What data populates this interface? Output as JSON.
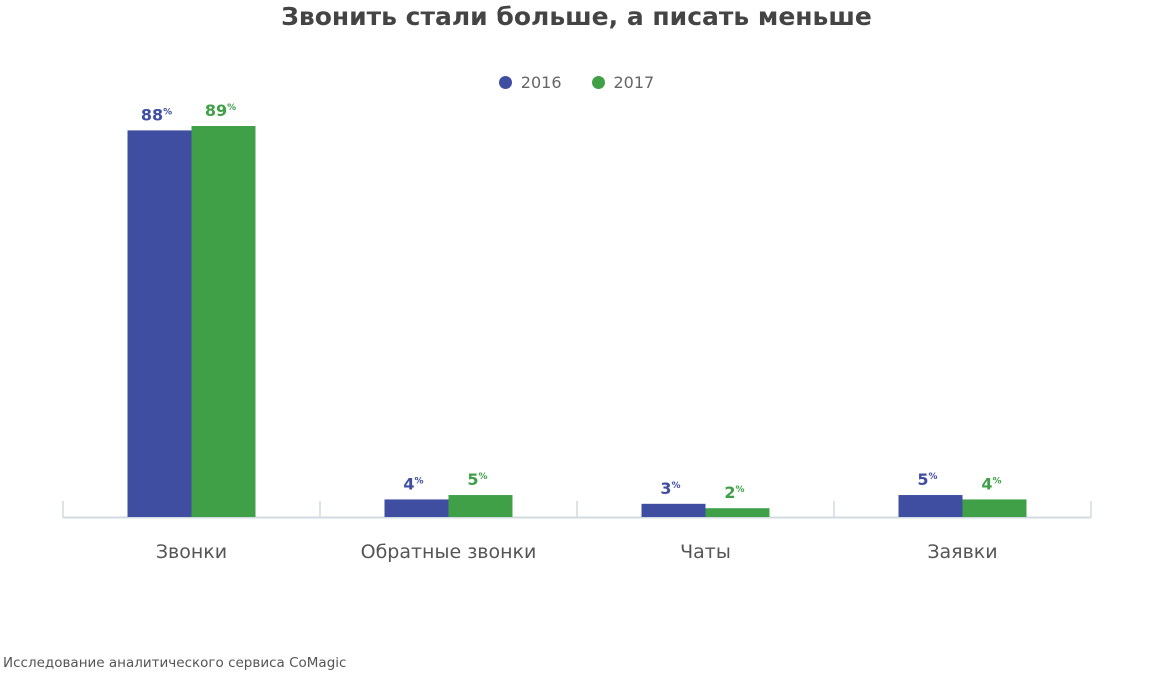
{
  "chart_data": {
    "type": "bar",
    "title": "Звонить стали больше, а писать меньше",
    "categories": [
      "Звонки",
      "Обратные звонки",
      "Чаты",
      "Заявки"
    ],
    "series": [
      {
        "name": "2016",
        "color": "#3f4ea1",
        "values": [
          88,
          4,
          3,
          5
        ]
      },
      {
        "name": "2017",
        "color": "#40a048",
        "values": [
          89,
          5,
          2,
          4
        ]
      }
    ],
    "value_suffix": "%",
    "xlabel": "",
    "ylabel": "",
    "ylim": [
      0,
      89
    ],
    "grid": false,
    "legend_position": "top-center"
  },
  "source_note": "Исследование аналитического сервиса CoMagic"
}
